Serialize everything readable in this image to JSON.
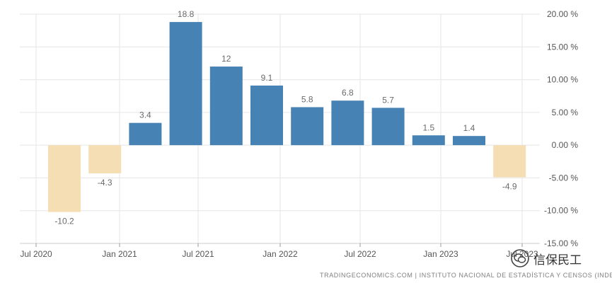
{
  "chart_data": {
    "type": "bar",
    "x": [
      "2020-Q3",
      "2020-Q4",
      "2021-Q1",
      "2021-Q2",
      "2021-Q3",
      "2021-Q4",
      "2022-Q1",
      "2022-Q2",
      "2022-Q3",
      "2022-Q4",
      "2023-Q1",
      "2023-Q2"
    ],
    "values": [
      -10.2,
      -4.3,
      3.4,
      18.8,
      12,
      9.1,
      5.8,
      6.8,
      5.7,
      1.5,
      1.4,
      -4.9
    ],
    "data_labels": [
      "-10.2",
      "-4.3",
      "3.4",
      "18.8",
      "12",
      "9.1",
      "5.8",
      "6.8",
      "5.7",
      "1.5",
      "1.4",
      "-4.9"
    ],
    "x_tick_labels": [
      "Jul 2020",
      "Jan 2021",
      "Jul 2021",
      "Jan 2022",
      "Jul 2022",
      "Jan 2023",
      "Jul 2023"
    ],
    "y_ticks": [
      20,
      15,
      10,
      5,
      0,
      -5,
      -10,
      -15
    ],
    "y_tick_labels": [
      "20.00 %",
      "15.00 %",
      "10.00 %",
      "5.00 %",
      "0.00 %",
      "-5.00 %",
      "-10.00 %",
      "-15.00 %"
    ],
    "ylim": [
      -15,
      20
    ],
    "y_axis_position": "right",
    "grid": true,
    "colors": {
      "positive": "#4682b4",
      "negative": "#f5deb3",
      "grid": "#e6e6e6"
    }
  },
  "source_text": "TRADINGECONOMICS.COM  |  INSTITUTO NACIONAL DE ESTADÍSTICA Y CENSOS (INDEC)",
  "watermark_text": "信保民工"
}
